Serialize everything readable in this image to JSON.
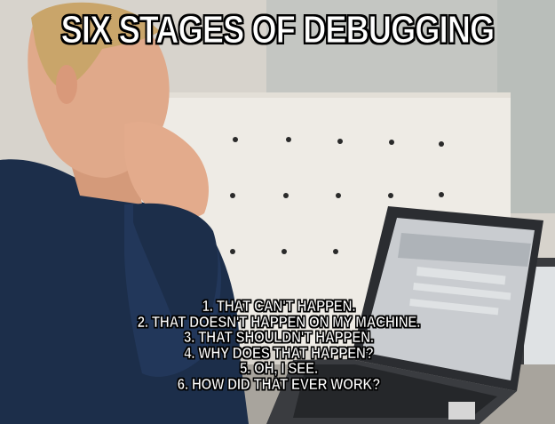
{
  "meme": {
    "top_text": "SIX STAGES OF DEBUGGING",
    "bottom_lines": [
      "1. THAT CAN'T HAPPEN.",
      "2. THAT DOESN'T HAPPEN ON MY MACHINE.",
      "3. THAT SHOULDN'T HAPPEN.",
      "4. WHY DOES THAT HAPPEN?",
      "5. OH, I SEE.",
      "6. HOW DID THAT EVER WORK?"
    ]
  },
  "colors": {
    "hoodie": "#1c2e4a",
    "skin": "#e0a98a",
    "hair": "#c9a56a",
    "wall": "#ece9e2",
    "laptop": "#2b2d31",
    "screen": "#c9ccd0"
  }
}
